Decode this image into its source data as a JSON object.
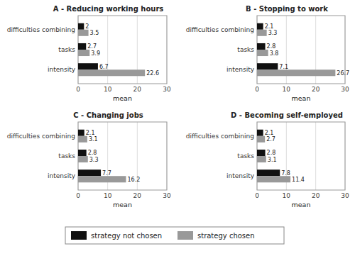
{
  "chart_data": [
    {
      "type": "bar",
      "orientation": "horizontal",
      "title": "A - Reducing working hours",
      "categories": [
        "intensity",
        "tasks",
        "difficulties combining"
      ],
      "series": [
        {
          "name": "strategy not chosen",
          "color": "#111111",
          "values": [
            6.7,
            2.7,
            2.0
          ]
        },
        {
          "name": "strategy chosen",
          "color": "#999999",
          "values": [
            22.6,
            3.9,
            3.5
          ]
        }
      ],
      "xlim": [
        0,
        30
      ],
      "xticks": [
        0,
        10,
        20,
        30
      ],
      "xlabel": "mean",
      "grid": true,
      "data_labels": true,
      "legend": "bottom"
    },
    {
      "type": "bar",
      "orientation": "horizontal",
      "title": "B - Stopping to work",
      "categories": [
        "intensity",
        "tasks",
        "difficulties combining"
      ],
      "series": [
        {
          "name": "strategy not chosen",
          "color": "#111111",
          "values": [
            7.1,
            2.8,
            2.1
          ]
        },
        {
          "name": "strategy chosen",
          "color": "#999999",
          "values": [
            26.7,
            3.8,
            3.3
          ]
        }
      ],
      "xlim": [
        0,
        30
      ],
      "xticks": [
        0,
        10,
        20,
        30
      ],
      "xlabel": "mean",
      "grid": true,
      "data_labels": true
    },
    {
      "type": "bar",
      "orientation": "horizontal",
      "title": "C - Changing jobs",
      "categories": [
        "intensity",
        "tasks",
        "difficulties combining"
      ],
      "series": [
        {
          "name": "strategy not chosen",
          "color": "#111111",
          "values": [
            7.7,
            2.8,
            2.1
          ]
        },
        {
          "name": "strategy chosen",
          "color": "#999999",
          "values": [
            16.2,
            3.3,
            3.1
          ]
        }
      ],
      "xlim": [
        0,
        30
      ],
      "xticks": [
        0,
        10,
        20,
        30
      ],
      "xlabel": "mean",
      "grid": true,
      "data_labels": true
    },
    {
      "type": "bar",
      "orientation": "horizontal",
      "title": "D - Becoming self-employed",
      "categories": [
        "intensity",
        "tasks",
        "difficulties combining"
      ],
      "series": [
        {
          "name": "strategy not chosen",
          "color": "#111111",
          "values": [
            7.8,
            2.8,
            2.1
          ]
        },
        {
          "name": "strategy chosen",
          "color": "#999999",
          "values": [
            11.4,
            3.1,
            2.7
          ]
        }
      ],
      "xlim": [
        0,
        30
      ],
      "xticks": [
        0,
        10,
        20,
        30
      ],
      "xlabel": "mean",
      "grid": true,
      "data_labels": true
    }
  ]
}
